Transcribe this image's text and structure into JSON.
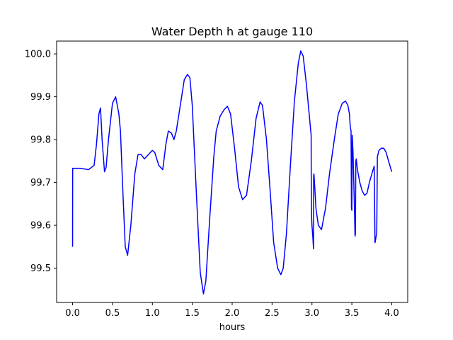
{
  "chart_data": {
    "type": "line",
    "title": "Water Depth h at gauge 110",
    "xlabel": "hours",
    "ylabel": "",
    "xlim": [
      -0.2,
      4.2
    ],
    "ylim": [
      99.42,
      100.03
    ],
    "xticks": [
      0.0,
      0.5,
      1.0,
      1.5,
      2.0,
      2.5,
      3.0,
      3.5,
      4.0
    ],
    "xtick_labels": [
      "0.0",
      "0.5",
      "1.0",
      "1.5",
      "2.0",
      "2.5",
      "3.0",
      "3.5",
      "4.0"
    ],
    "yticks": [
      99.5,
      99.6,
      99.7,
      99.8,
      99.9,
      100.0
    ],
    "ytick_labels": [
      "99.5",
      "99.6",
      "99.7",
      "99.8",
      "99.9",
      "100.0"
    ],
    "grid": false,
    "legend": "none",
    "series": [
      {
        "color": "#0000ff",
        "x": [
          0.0,
          0.001,
          0.002,
          0.1,
          0.2,
          0.27,
          0.3,
          0.33,
          0.35,
          0.37,
          0.4,
          0.42,
          0.45,
          0.5,
          0.54,
          0.58,
          0.6,
          0.63,
          0.66,
          0.69,
          0.73,
          0.78,
          0.82,
          0.86,
          0.9,
          0.95,
          1.0,
          1.03,
          1.08,
          1.13,
          1.17,
          1.2,
          1.24,
          1.27,
          1.3,
          1.35,
          1.4,
          1.44,
          1.47,
          1.5,
          1.55,
          1.6,
          1.64,
          1.67,
          1.72,
          1.77,
          1.8,
          1.85,
          1.9,
          1.94,
          1.98,
          2.03,
          2.08,
          2.13,
          2.18,
          2.24,
          2.3,
          2.35,
          2.38,
          2.43,
          2.48,
          2.52,
          2.57,
          2.61,
          2.64,
          2.68,
          2.73,
          2.78,
          2.83,
          2.86,
          2.89,
          2.93,
          2.97,
          2.99,
          2.991,
          2.995,
          3.0,
          3.01,
          3.02,
          3.021,
          3.025,
          3.035,
          3.05,
          3.08,
          3.12,
          3.17,
          3.22,
          3.28,
          3.33,
          3.38,
          3.42,
          3.45,
          3.47,
          3.48,
          3.49,
          3.495,
          3.5,
          3.505,
          3.51,
          3.515,
          3.52,
          3.53,
          3.54,
          3.545,
          3.55,
          3.555,
          3.57,
          3.6,
          3.63,
          3.66,
          3.69,
          3.72,
          3.75,
          3.78,
          3.79,
          3.792,
          3.8,
          3.81,
          3.812,
          3.82,
          3.84,
          3.87,
          3.9,
          3.93,
          3.96,
          4.0
        ],
        "y": [
          99.55,
          99.73,
          99.733,
          99.733,
          99.73,
          99.74,
          99.79,
          99.86,
          99.874,
          99.8,
          99.725,
          99.735,
          99.8,
          99.885,
          99.9,
          99.86,
          99.82,
          99.68,
          99.55,
          99.53,
          99.6,
          99.72,
          99.765,
          99.765,
          99.755,
          99.765,
          99.775,
          99.77,
          99.74,
          99.73,
          99.79,
          99.82,
          99.815,
          99.8,
          99.82,
          99.88,
          99.94,
          99.952,
          99.945,
          99.88,
          99.68,
          99.49,
          99.44,
          99.47,
          99.62,
          99.76,
          99.82,
          99.855,
          99.87,
          99.878,
          99.86,
          99.78,
          99.69,
          99.66,
          99.67,
          99.75,
          99.85,
          99.888,
          99.88,
          99.8,
          99.67,
          99.56,
          99.5,
          99.485,
          99.5,
          99.58,
          99.74,
          99.89,
          99.98,
          100.007,
          99.995,
          99.93,
          99.85,
          99.81,
          99.72,
          99.62,
          99.6,
          99.575,
          99.545,
          99.715,
          99.72,
          99.69,
          99.64,
          99.6,
          99.59,
          99.64,
          99.72,
          99.8,
          99.86,
          99.885,
          99.89,
          99.88,
          99.86,
          99.83,
          99.82,
          99.64,
          99.635,
          99.81,
          99.79,
          99.77,
          99.73,
          99.66,
          99.575,
          99.58,
          99.75,
          99.755,
          99.73,
          99.7,
          99.68,
          99.67,
          99.675,
          99.7,
          99.72,
          99.738,
          99.56,
          99.56,
          99.57,
          99.58,
          99.58,
          99.76,
          99.775,
          99.78,
          99.78,
          99.77,
          99.75,
          99.725
        ]
      }
    ]
  }
}
